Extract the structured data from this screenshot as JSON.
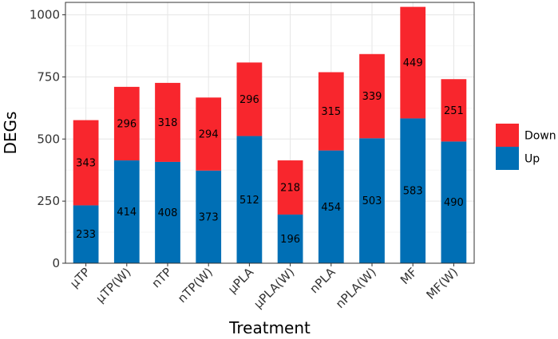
{
  "chart_data": {
    "type": "bar",
    "stacked": true,
    "title": "",
    "xlabel": "Treatment",
    "ylabel": "DEGs",
    "ylim": [
      0,
      1050
    ],
    "yticks": [
      0,
      250,
      500,
      750,
      1000
    ],
    "grid": true,
    "legend_position": "right",
    "categories": [
      "µTP",
      "µTP(W)",
      "nTP",
      "nTP(W)",
      "µPLA",
      "µPLA(W)",
      "nPLA",
      "nPLA(W)",
      "MF",
      "MF(W)"
    ],
    "series": [
      {
        "name": "Up",
        "color": "#006fb5",
        "values": [
          233,
          414,
          408,
          373,
          512,
          196,
          454,
          503,
          583,
          490
        ]
      },
      {
        "name": "Down",
        "color": "#f8262d",
        "values": [
          343,
          296,
          318,
          294,
          296,
          218,
          315,
          339,
          449,
          251
        ]
      }
    ],
    "legend_order": [
      "Down",
      "Up"
    ]
  }
}
